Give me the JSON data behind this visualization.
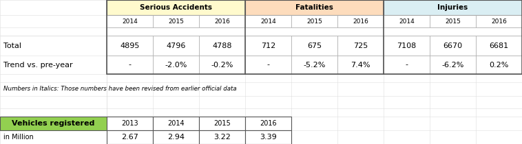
{
  "serious_accidents_header": "Serious Accidents",
  "fatalities_header": "Fatalities",
  "injuries_header": "Injuries",
  "years_main": [
    "2014",
    "2015",
    "2016"
  ],
  "total_row_label": "Total",
  "trend_row_label": "Trend vs. pre-year",
  "serious_total": [
    "4895",
    "4796",
    "4788"
  ],
  "serious_trend": [
    "-",
    "-2.0%",
    "-0.2%"
  ],
  "fatalities_total": [
    "712",
    "675",
    "725"
  ],
  "fatalities_trend": [
    "-",
    "-5.2%",
    "7.4%"
  ],
  "injuries_total": [
    "7108",
    "6670",
    "6681"
  ],
  "injuries_trend": [
    "-",
    "-6.2%",
    "0.2%"
  ],
  "note": "Numbers in Italics: Those numbers have been revised from earlier official data",
  "vehicles_label": "Vehicles registered",
  "vehicles_unit": "in Million",
  "vehicles_years": [
    "2013",
    "2014",
    "2015",
    "2016"
  ],
  "vehicles_values": [
    "2.67",
    "2.94",
    "3.22",
    "3.39"
  ],
  "sa_color": "#FFFACD",
  "fat_color": "#FDDCBC",
  "inj_color": "#DAEEF3",
  "vehicles_cell_color": "#92D050",
  "grid_color": "#AAAAAA",
  "border_color": "#555555"
}
